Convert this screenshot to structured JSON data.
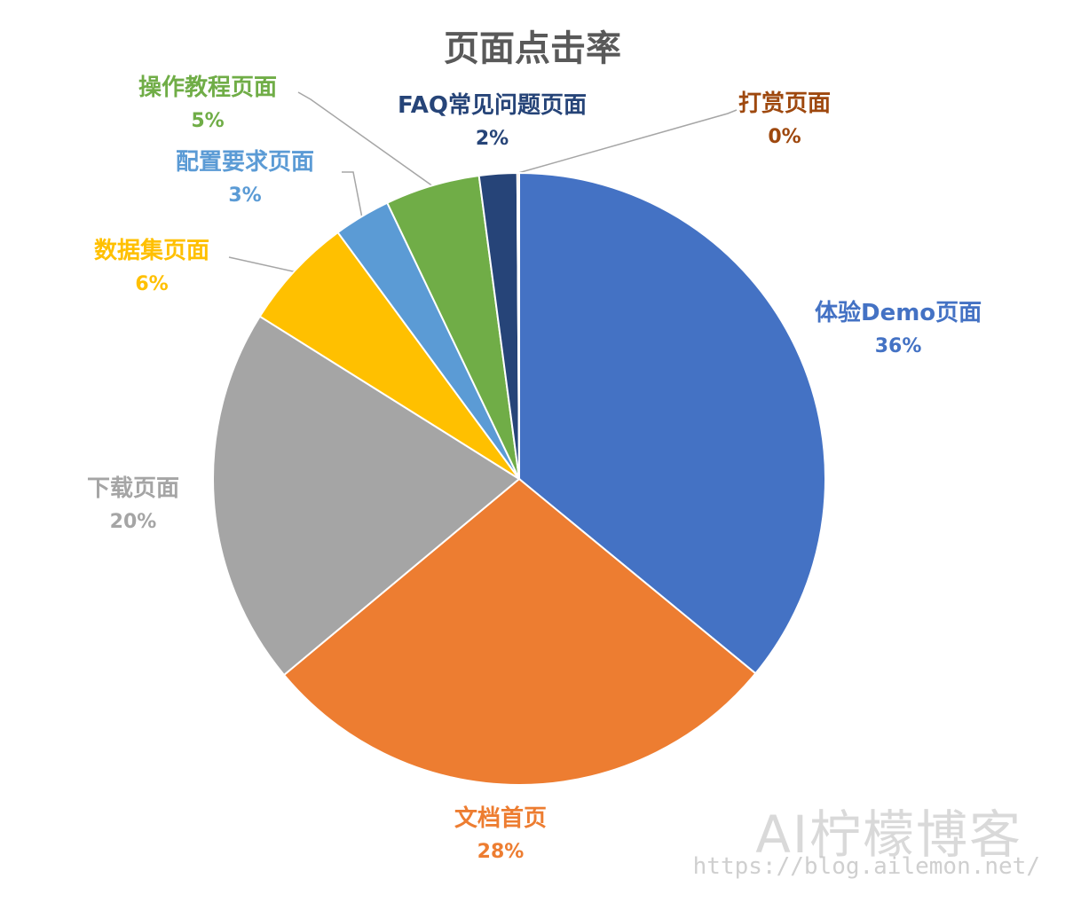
{
  "chart_data": {
    "type": "pie",
    "title": "页面点击率",
    "slices": [
      {
        "label": "体验Demo页面",
        "value": 36,
        "value_label": "36%",
        "color": "#4472C4"
      },
      {
        "label": "文档首页",
        "value": 28,
        "value_label": "28%",
        "color": "#ED7D31"
      },
      {
        "label": "下载页面",
        "value": 20,
        "value_label": "20%",
        "color": "#A5A5A5"
      },
      {
        "label": "数据集页面",
        "value": 6,
        "value_label": "6%",
        "color": "#FFC000"
      },
      {
        "label": "配置要求页面",
        "value": 3,
        "value_label": "3%",
        "color": "#5B9BD5"
      },
      {
        "label": "操作教程页面",
        "value": 5,
        "value_label": "5%",
        "color": "#70AD47"
      },
      {
        "label": "FAQ常见问题页面",
        "value": 2,
        "value_label": "2%",
        "color": "#264478"
      },
      {
        "label": "打赏页面",
        "value": 0.1,
        "value_label": "0%",
        "color": "#9E480E"
      }
    ]
  },
  "watermark": {
    "text": "AI柠檬博客",
    "url": "https://blog.ailemon.net/"
  }
}
